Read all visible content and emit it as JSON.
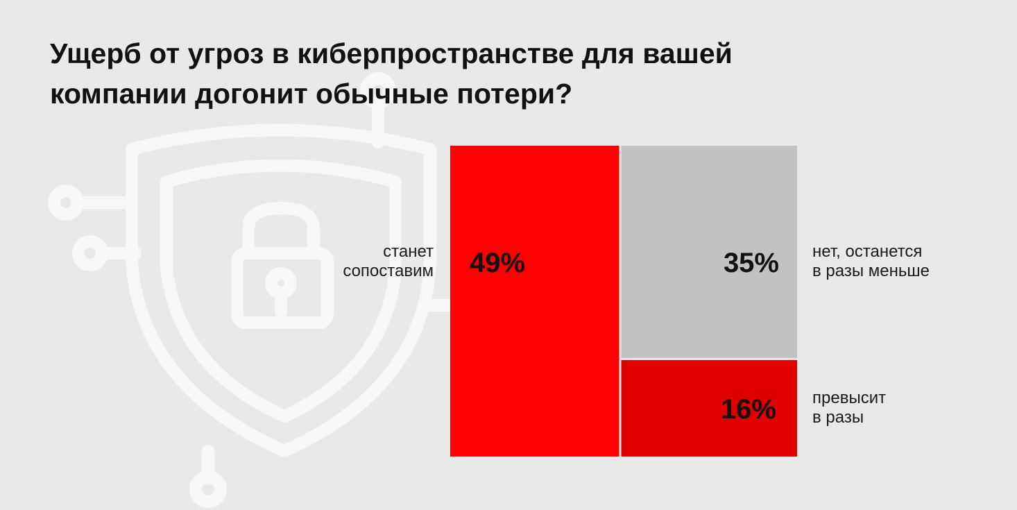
{
  "title_lines": [
    "Ущерб от угроз в киберпространстве для вашей",
    "компании догонит обычные потери?"
  ],
  "background_icon": "shield-lock-circuit-icon",
  "chart_data": {
    "type": "treemap",
    "title": "Ущерб от угроз в киберпространстве для вашей компании догонит обычные потери?",
    "items": [
      {
        "name": "станет сопоставим",
        "label_lines": [
          "станет",
          "сопоставим"
        ],
        "value": 49,
        "value_label": "49%",
        "color": "#ff0000"
      },
      {
        "name": "нет, останется в разы меньше",
        "label_lines": [
          "нет, останется",
          "в разы меньше"
        ],
        "value": 35,
        "value_label": "35%",
        "color": "#c2c2c2"
      },
      {
        "name": "превысит в разы",
        "label_lines": [
          "превысит",
          "в разы"
        ],
        "value": 16,
        "value_label": "16%",
        "color": "#e00000"
      }
    ],
    "unit": "%"
  }
}
